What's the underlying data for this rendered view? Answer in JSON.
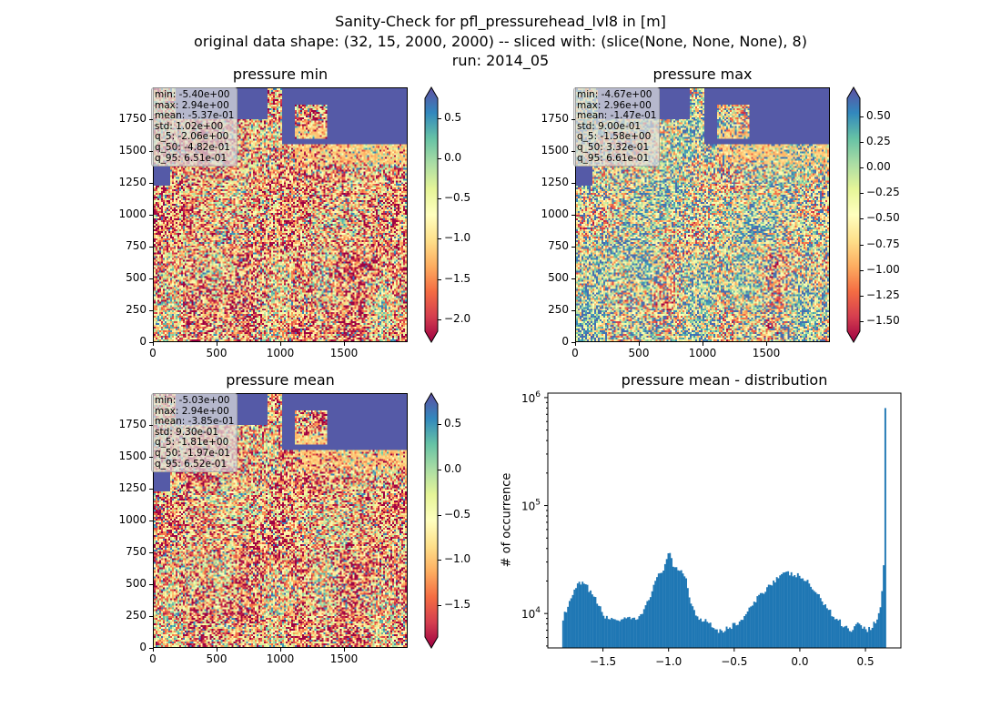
{
  "figure": {
    "title_lines": [
      "Sanity-Check for pfl_pressurehead_lvl8 in [m]",
      "original data shape: (32, 15, 2000, 2000) -- sliced with: (slice(None, None, None), 8)",
      "run: 2014_05"
    ]
  },
  "chart_data": [
    {
      "type": "heatmap",
      "title": "pressure min",
      "colormap": "Spectral",
      "xlim": [
        0,
        2000
      ],
      "ylim": [
        0,
        2000
      ],
      "xticks": [
        "0",
        "500",
        "1000",
        "1500"
      ],
      "yticks": [
        "0",
        "250",
        "500",
        "750",
        "1000",
        "1250",
        "1500",
        "1750"
      ],
      "colorbar_range": [
        -2.15,
        0.75
      ],
      "colorbar_ticks": [
        "0.5",
        "0.0",
        "−0.5",
        "−1.0",
        "−1.5",
        "−2.0"
      ],
      "colorbar_tick_values": [
        0.5,
        0.0,
        -0.5,
        -1.0,
        -1.5,
        -2.0
      ],
      "stats": [
        "min: -5.40e+00",
        "max: 2.94e+00",
        "mean: -5.37e-01",
        "std: 1.02e+00",
        "q_5: -2.06e+00",
        "q_50: -4.82e-01",
        "q_95: 6.51e-01"
      ]
    },
    {
      "type": "heatmap",
      "title": "pressure max",
      "colormap": "Spectral",
      "xlim": [
        0,
        2000
      ],
      "ylim": [
        0,
        2000
      ],
      "xticks": [
        "0",
        "500",
        "1000",
        "1500"
      ],
      "yticks": [
        "0",
        "250",
        "500",
        "750",
        "1000",
        "1250",
        "1500",
        "1750"
      ],
      "colorbar_range": [
        -1.6,
        0.68
      ],
      "colorbar_ticks": [
        "0.50",
        "0.25",
        "0.00",
        "−0.25",
        "−0.50",
        "−0.75",
        "−1.00",
        "−1.25",
        "−1.50"
      ],
      "colorbar_tick_values": [
        0.5,
        0.25,
        0.0,
        -0.25,
        -0.5,
        -0.75,
        -1.0,
        -1.25,
        -1.5
      ],
      "stats": [
        "min: -4.67e+00",
        "max: 2.96e+00",
        "mean: -1.47e-01",
        "std: 9.00e-01",
        "q_5: -1.58e+00",
        "q_50: 3.32e-01",
        "q_95: 6.61e-01"
      ]
    },
    {
      "type": "heatmap",
      "title": "pressure mean",
      "colormap": "Spectral",
      "xlim": [
        0,
        2000
      ],
      "ylim": [
        0,
        2000
      ],
      "xticks": [
        "0",
        "500",
        "1000",
        "1500"
      ],
      "yticks": [
        "0",
        "250",
        "500",
        "750",
        "1000",
        "1250",
        "1500",
        "1750"
      ],
      "colorbar_range": [
        -1.85,
        0.72
      ],
      "colorbar_ticks": [
        "0.5",
        "0.0",
        "−0.5",
        "−1.0",
        "−1.5"
      ],
      "colorbar_tick_values": [
        0.5,
        0.0,
        -0.5,
        -1.0,
        -1.5
      ],
      "stats": [
        "min: -5.03e+00",
        "max: 2.94e+00",
        "mean: -3.85e-01",
        "std: 9.30e-01",
        "q_5: -1.81e+00",
        "q_50: -1.97e-01",
        "q_95: 6.52e-01"
      ]
    },
    {
      "type": "histogram",
      "title": "pressure mean - distribution",
      "ylabel": "# of occurrence",
      "yscale": "log",
      "xlim": [
        -1.92,
        0.77
      ],
      "ylim": [
        4800,
        1100000
      ],
      "xticks": [
        "−1.5",
        "−1.0",
        "−0.5",
        "0.0",
        "0.5"
      ],
      "xtick_values": [
        -1.5,
        -1.0,
        -0.5,
        0.0,
        0.5
      ],
      "yticks": [
        "10^4",
        "10^5",
        "10^6"
      ],
      "bar_color": "#1f77b4",
      "profile_x": [
        -1.81,
        -1.78,
        -1.74,
        -1.72,
        -1.68,
        -1.64,
        -1.6,
        -1.55,
        -1.5,
        -1.46,
        -1.42,
        -1.38,
        -1.3,
        -1.22,
        -1.16,
        -1.12,
        -1.08,
        -1.04,
        -1.0,
        -0.98,
        -0.96,
        -0.93,
        -0.9,
        -0.87,
        -0.84,
        -0.8,
        -0.76,
        -0.72,
        -0.68,
        -0.64,
        -0.58,
        -0.52,
        -0.45,
        -0.38,
        -0.3,
        -0.22,
        -0.16,
        -0.1,
        -0.05,
        0.0,
        0.05,
        0.1,
        0.15,
        0.2,
        0.25,
        0.3,
        0.35,
        0.4,
        0.45,
        0.5,
        0.55,
        0.6,
        0.62,
        0.635,
        0.645
      ],
      "profile_y": [
        8800,
        10500,
        13500,
        16000,
        19000,
        18500,
        16500,
        13000,
        10000,
        8700,
        9200,
        8600,
        8800,
        9000,
        13000,
        17000,
        22000,
        26000,
        37000,
        32000,
        26000,
        25000,
        25500,
        22000,
        14000,
        10000,
        9000,
        8700,
        8300,
        7000,
        7000,
        7600,
        8500,
        11000,
        15000,
        19000,
        22000,
        23500,
        23000,
        22000,
        20000,
        17000,
        14000,
        12000,
        9500,
        8500,
        7500,
        7000,
        8500,
        7000,
        7500,
        9500,
        12000,
        28000,
        800000
      ]
    }
  ]
}
